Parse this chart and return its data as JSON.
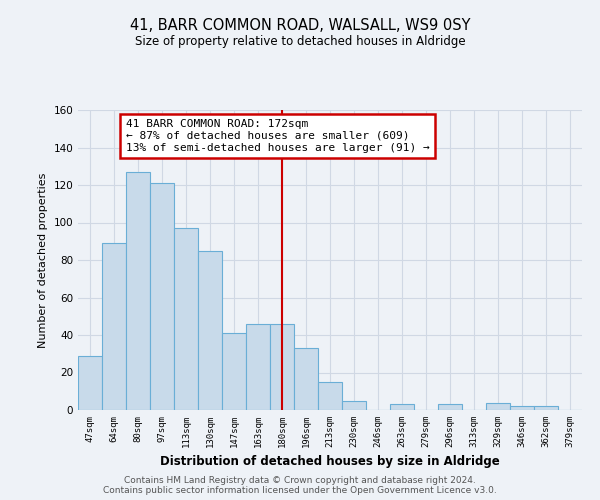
{
  "title": "41, BARR COMMON ROAD, WALSALL, WS9 0SY",
  "subtitle": "Size of property relative to detached houses in Aldridge",
  "xlabel": "Distribution of detached houses by size in Aldridge",
  "ylabel": "Number of detached properties",
  "bar_labels": [
    "47sqm",
    "64sqm",
    "80sqm",
    "97sqm",
    "113sqm",
    "130sqm",
    "147sqm",
    "163sqm",
    "180sqm",
    "196sqm",
    "213sqm",
    "230sqm",
    "246sqm",
    "263sqm",
    "279sqm",
    "296sqm",
    "313sqm",
    "329sqm",
    "346sqm",
    "362sqm",
    "379sqm"
  ],
  "bar_values": [
    29,
    89,
    127,
    121,
    97,
    85,
    41,
    46,
    46,
    33,
    15,
    5,
    0,
    3,
    0,
    3,
    0,
    4,
    2,
    2,
    0
  ],
  "bar_color": "#c8daea",
  "bar_edge_color": "#6aaed6",
  "ylim": [
    0,
    160
  ],
  "yticks": [
    0,
    20,
    40,
    60,
    80,
    100,
    120,
    140,
    160
  ],
  "vline_x": 8,
  "vline_color": "#cc0000",
  "annotation_title": "41 BARR COMMON ROAD: 172sqm",
  "annotation_line1": "← 87% of detached houses are smaller (609)",
  "annotation_line2": "13% of semi-detached houses are larger (91) →",
  "annotation_box_color": "#ffffff",
  "annotation_box_edge": "#cc0000",
  "footer1": "Contains HM Land Registry data © Crown copyright and database right 2024.",
  "footer2": "Contains public sector information licensed under the Open Government Licence v3.0.",
  "background_color": "#eef2f7",
  "plot_bg_color": "#eef2f7",
  "grid_color": "#d0d8e4"
}
